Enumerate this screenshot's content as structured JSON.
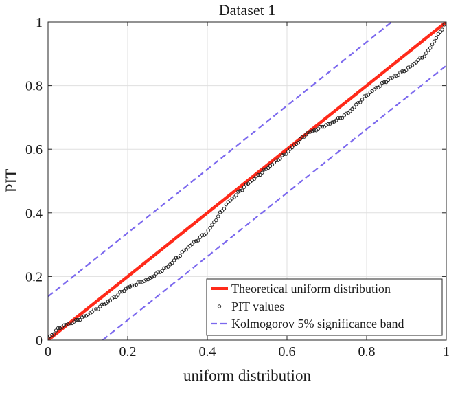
{
  "chart_data": {
    "type": "scatter",
    "title": "Dataset 1",
    "xlabel": "uniform distribution",
    "ylabel": "PIT",
    "xlim": [
      0,
      1
    ],
    "ylim": [
      0,
      1
    ],
    "grid": true,
    "legend_position": "bottom-right",
    "xticks": [
      0,
      0.2,
      0.4,
      0.6,
      0.8,
      1
    ],
    "yticks": [
      0,
      0.2,
      0.4,
      0.6,
      0.8,
      1
    ],
    "xtick_labels": [
      "0",
      "0.2",
      "0.4",
      "0.6",
      "0.8",
      "1"
    ],
    "ytick_labels": [
      "0",
      "0.2",
      "0.4",
      "0.6",
      "0.8",
      "1"
    ],
    "series": [
      {
        "name": "Theoretical uniform distribution",
        "kind": "line",
        "color": "#ff2a1a",
        "x": [
          0,
          1
        ],
        "y": [
          0,
          1
        ]
      },
      {
        "name": "PIT values",
        "kind": "scatter",
        "color": "#222222",
        "n_points": 200,
        "profile": {
          "x": [
            0,
            0.03,
            0.08,
            0.15,
            0.2,
            0.25,
            0.3,
            0.35,
            0.4,
            0.45,
            0.5,
            0.55,
            0.6,
            0.65,
            0.7,
            0.75,
            0.8,
            0.85,
            0.9,
            0.95,
            1.0
          ],
          "y": [
            0.005,
            0.04,
            0.065,
            0.12,
            0.165,
            0.19,
            0.23,
            0.29,
            0.34,
            0.43,
            0.49,
            0.54,
            0.59,
            0.65,
            0.675,
            0.71,
            0.77,
            0.815,
            0.85,
            0.9,
            1.0
          ]
        }
      },
      {
        "name": "Kolmogorov 5% significance band",
        "kind": "dashed-line",
        "color": "#7b68ee",
        "offset": 0.137,
        "upper": {
          "x": [
            0,
            0.863
          ],
          "y": [
            0.137,
            1
          ]
        },
        "lower": {
          "x": [
            0.137,
            1
          ],
          "y": [
            0,
            0.863
          ]
        }
      }
    ]
  }
}
